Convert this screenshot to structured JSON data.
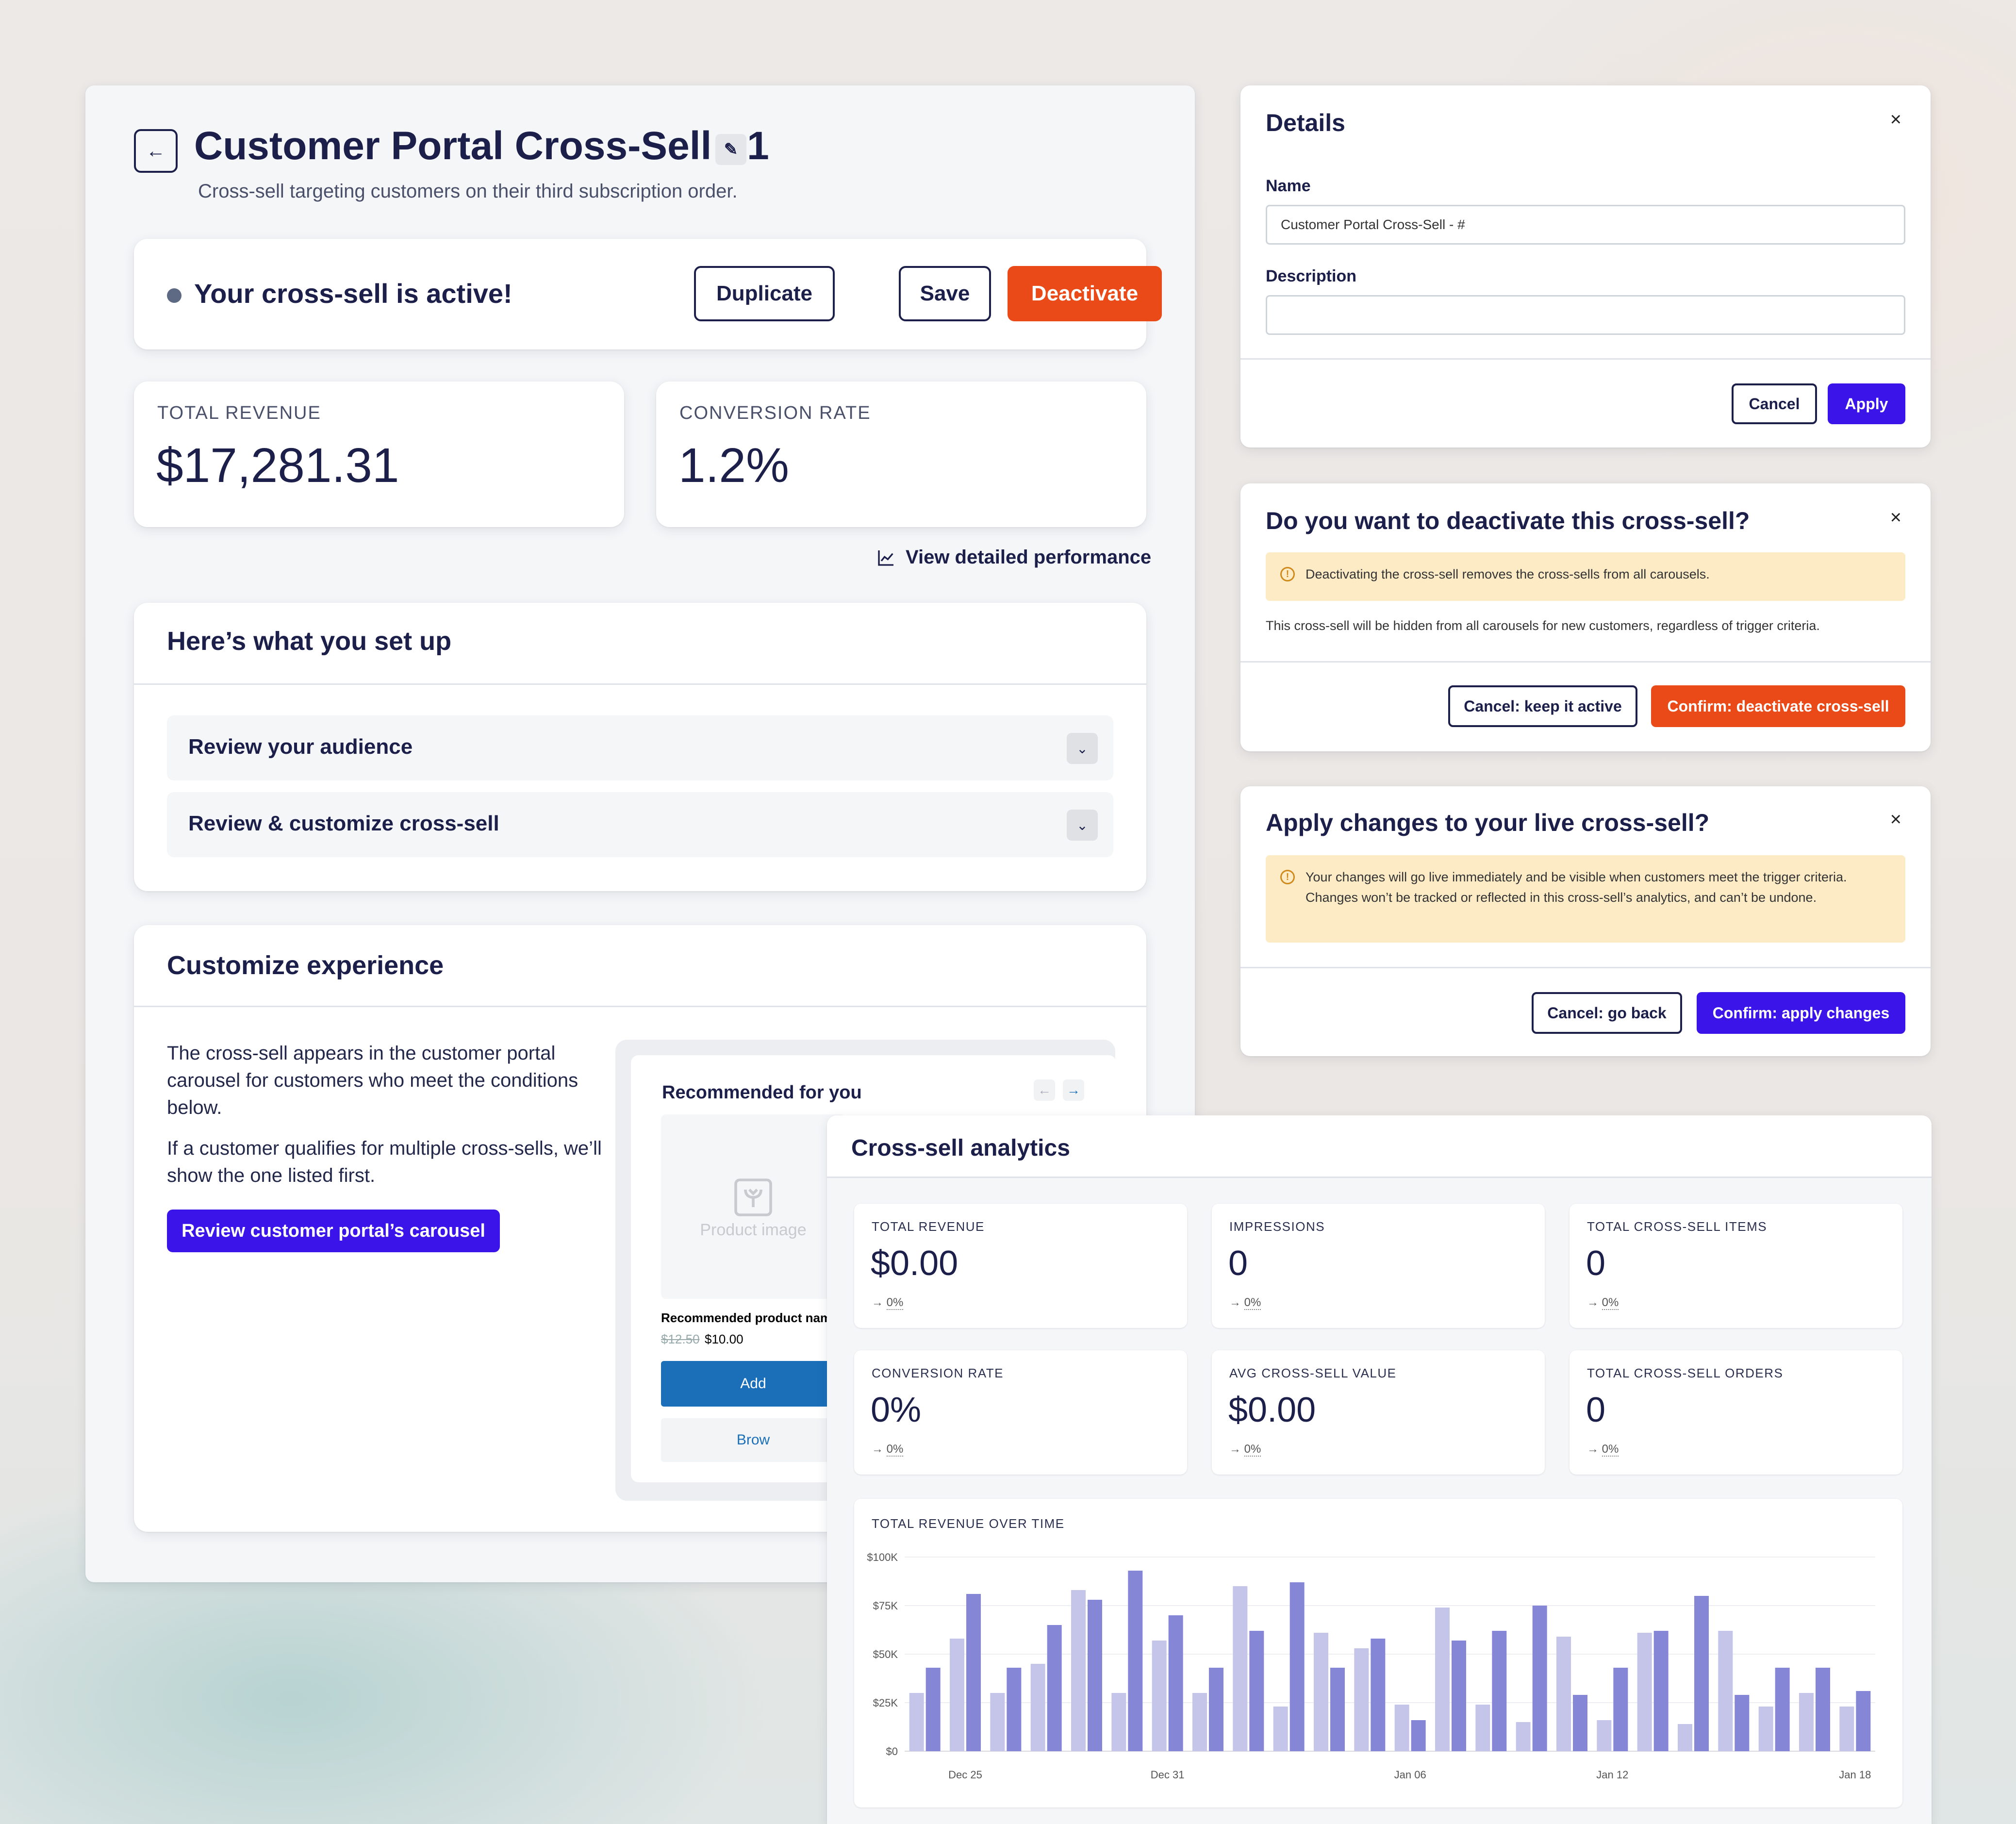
{
  "main": {
    "back_icon": "arrow-left-icon",
    "title": "Customer Portal Cross-Sell - 1",
    "subtitle": "Cross-sell targeting customers on their third subscription order.",
    "status": "Your cross-sell is active!",
    "buttons": {
      "duplicate": "Duplicate",
      "save": "Save",
      "deactivate": "Deactivate"
    },
    "metrics": [
      {
        "label": "TOTAL REVENUE",
        "value": "$17,281.31"
      },
      {
        "label": "CONVERSION RATE",
        "value": "1.2%"
      }
    ],
    "perf_link": "View detailed performance",
    "setup": {
      "title": "Here’s what you set up",
      "items": [
        "Review your audience",
        "Review & customize cross-sell"
      ]
    },
    "customize": {
      "title": "Customize experience",
      "para1": "The cross-sell appears in the customer portal carousel for customers who meet the conditions below.",
      "para2": "If a customer qualifies for multiple cross-sells, we’ll show the one listed first.",
      "button": "Review customer portal’s carousel",
      "preview": {
        "title": "Recommended for you",
        "image_placeholder": "Product image",
        "product_name": "Recommended product nam",
        "old_price": "$12.50",
        "new_price": "$10.00",
        "add": "Add",
        "browse": "Brow"
      }
    }
  },
  "details_modal": {
    "title": "Details",
    "name_label": "Name",
    "name_value": "Customer Portal Cross-Sell - #",
    "description_label": "Description",
    "description_value": "",
    "cancel": "Cancel",
    "apply": "Apply"
  },
  "deactivate_modal": {
    "title": "Do you want to deactivate this cross-sell?",
    "warning": "Deactivating the cross-sell removes the cross-sells from all carousels.",
    "note": "This cross-sell will be hidden from all carousels for new customers, regardless of trigger criteria.",
    "cancel": "Cancel: keep it active",
    "confirm": "Confirm: deactivate cross-sell"
  },
  "apply_modal": {
    "title": "Apply changes to your live cross-sell?",
    "warning": "Your changes will go live immediately and be visible when customers meet the trigger criteria. Changes won’t be tracked or reflected in this cross-sell’s analytics, and can’t be undone.",
    "cancel": "Cancel: go back",
    "confirm": "Confirm: apply changes"
  },
  "analytics": {
    "title": "Cross-sell analytics",
    "tiles": [
      {
        "label": "TOTAL REVENUE",
        "value": "$0.00",
        "change": "0%"
      },
      {
        "label": "IMPRESSIONS",
        "value": "0",
        "change": "0%"
      },
      {
        "label": "TOTAL CROSS-SELL ITEMS",
        "value": "0",
        "change": "0%"
      },
      {
        "label": "CONVERSION RATE",
        "value": "0%",
        "change": "0%"
      },
      {
        "label": "AVG CROSS-SELL VALUE",
        "value": "$0.00",
        "change": "0%"
      },
      {
        "label": "TOTAL CROSS-SELL ORDERS",
        "value": "0",
        "change": "0%"
      }
    ],
    "change_arrow": "→",
    "colors": {
      "light": "#c5c5ea",
      "dark": "#8686d6"
    }
  },
  "chart_data": {
    "type": "bar",
    "title": "TOTAL REVENUE OVER TIME",
    "xlabel": "",
    "ylabel": "",
    "ylim": [
      0,
      100000
    ],
    "y_ticks": [
      "$0",
      "$25K",
      "$50K",
      "$75K",
      "$100K"
    ],
    "x_tick_labels": [
      {
        "index": 1,
        "label": "Dec 25"
      },
      {
        "index": 6,
        "label": "Dec 31"
      },
      {
        "index": 12,
        "label": "Jan 06"
      },
      {
        "index": 17,
        "label": "Jan 12"
      },
      {
        "index": 23,
        "label": "Jan 18"
      }
    ],
    "grid": true,
    "series": [
      {
        "values": [
          30000,
          58000,
          30000,
          45000,
          83000,
          30000,
          57000,
          30000,
          85000,
          23000,
          61000,
          53000,
          24000,
          74000,
          24000,
          15000,
          59000,
          16000,
          61000,
          14000,
          62000,
          23000,
          30000,
          23000
        ]
      },
      {
        "values": [
          43000,
          81000,
          43000,
          65000,
          78000,
          93000,
          70000,
          43000,
          62000,
          87000,
          43000,
          58000,
          16000,
          57000,
          62000,
          75000,
          29000,
          43000,
          62000,
          80000,
          29000,
          43000,
          43000,
          31000
        ]
      }
    ]
  }
}
